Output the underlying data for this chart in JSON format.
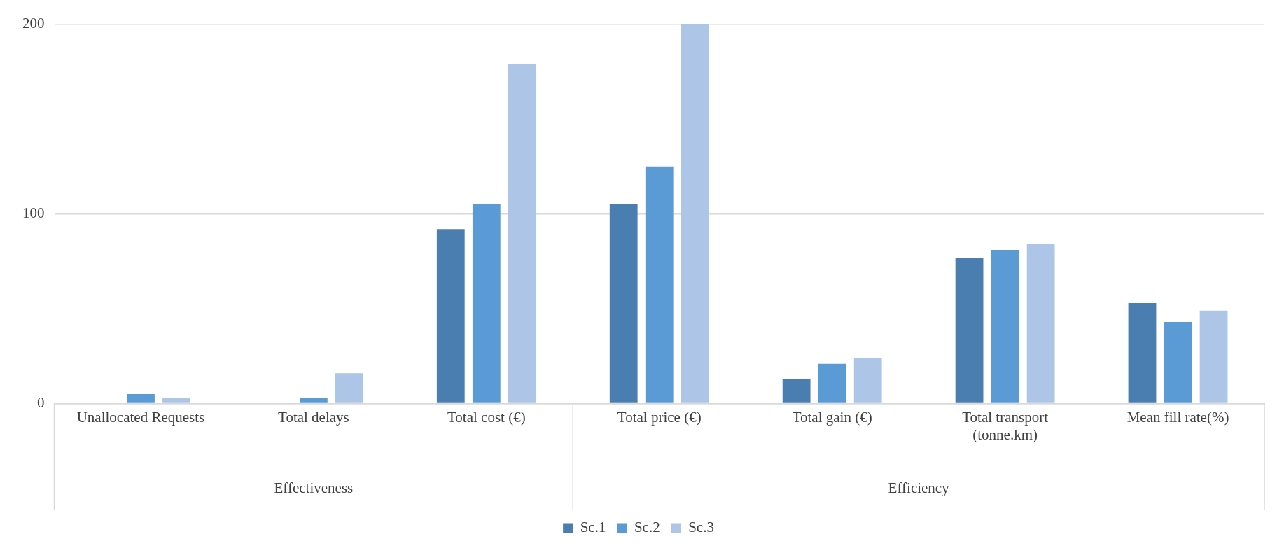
{
  "chart_data": {
    "type": "bar",
    "categories": [
      "Unallocated Requests",
      "Total delays",
      "Total cost (€)",
      "Total price (€)",
      "Total gain (€)",
      "Total transport (tonne.km)",
      "Mean fill rate(%)"
    ],
    "series": [
      {
        "name": "Sc.1",
        "color": "#4a7eb0",
        "values": [
          0,
          0,
          92,
          105,
          13,
          77,
          53
        ]
      },
      {
        "name": "Sc.2",
        "color": "#5b9bd5",
        "values": [
          5,
          3,
          105,
          125,
          21,
          81,
          43
        ]
      },
      {
        "name": "Sc.3",
        "color": "#adc5e6",
        "values": [
          3,
          16,
          179,
          200,
          24,
          84,
          49
        ]
      }
    ],
    "ylim": [
      0,
      200
    ],
    "yticks": [
      0,
      100,
      200
    ],
    "grid": "y",
    "legend": "bottom",
    "annotations": [
      "Effectiveness",
      "Efficiency"
    ]
  }
}
